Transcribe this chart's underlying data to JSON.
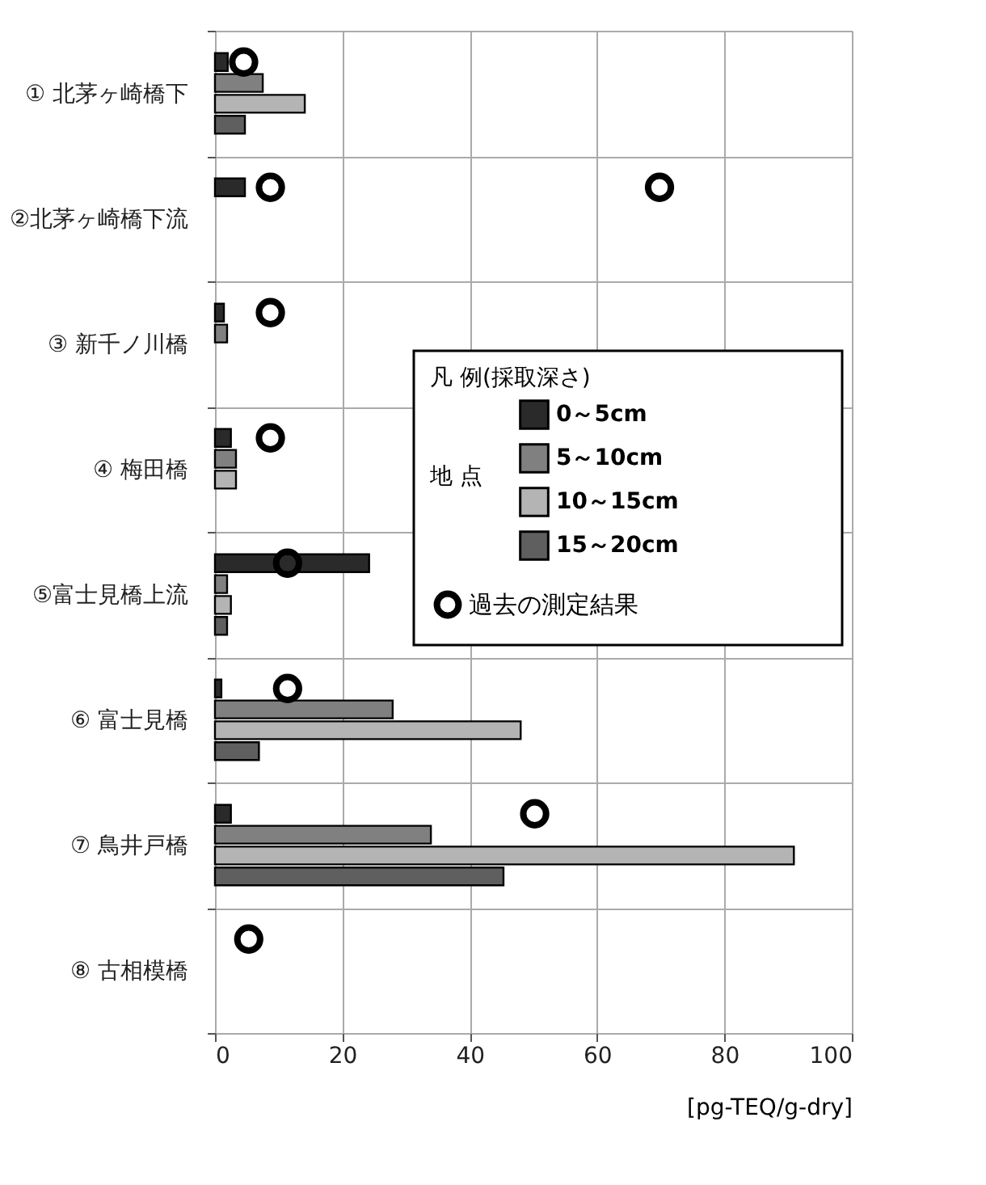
{
  "chart_data": {
    "type": "bar",
    "orientation": "horizontal",
    "categories": [
      "① 北茅ヶ崎橋下",
      "②北茅ヶ崎橋下流",
      "③ 新千ノ川橋",
      "④ 梅田橋",
      "⑤富士見橋上流",
      "⑥ 富士見橋",
      "⑦ 鳥井戸橋",
      "⑧ 古相模橋"
    ],
    "series": [
      {
        "name": "0～5cm",
        "color": "#2a2a2a",
        "values": [
          2,
          4.7,
          1.4,
          2.5,
          24.2,
          1,
          2.5,
          null
        ]
      },
      {
        "name": "5～10cm",
        "color": "#808080",
        "values": [
          7.5,
          null,
          1.9,
          3.3,
          1.9,
          27.9,
          33.9,
          null
        ]
      },
      {
        "name": "10～15cm",
        "color": "#b4b4b4",
        "values": [
          14.1,
          null,
          null,
          3.3,
          2.5,
          48,
          90.9,
          null
        ]
      },
      {
        "name": "15～20cm",
        "color": "#5f5f5f",
        "values": [
          4.7,
          null,
          null,
          null,
          1.9,
          6.9,
          45.3,
          null
        ]
      },
      {
        "name": "過去の測定結果",
        "type": "scatter",
        "color": "#000000",
        "values": [
          4.5,
          8.7,
          8.7,
          8.7,
          11.4,
          11.4,
          50.2,
          5.3
        ]
      },
      {
        "type": "scatter",
        "color": "#000000",
        "values": [
          null,
          69.8,
          null,
          null,
          null,
          null,
          null,
          null
        ]
      }
    ],
    "xlabel": "[pg-TEQ/g-dry]",
    "legend_title": "凡 例(採取深さ)",
    "annotations": [
      "地 点"
    ],
    "xlim": [
      0,
      100
    ],
    "xticks": [
      0,
      20,
      40,
      60,
      80,
      100
    ],
    "grid": true,
    "legend": "right",
    "marker": "circle"
  }
}
